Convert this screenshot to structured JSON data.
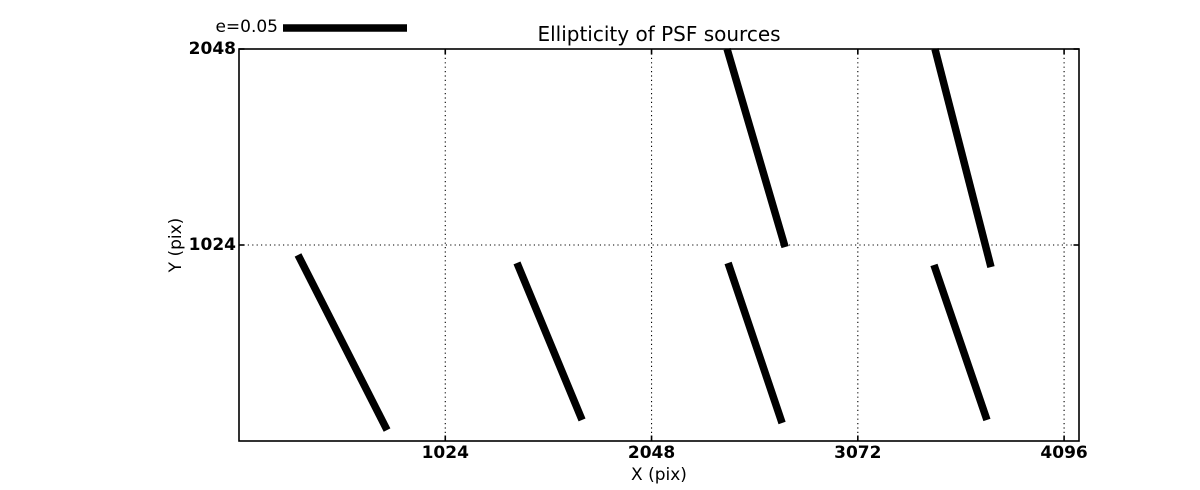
{
  "chart_data": {
    "type": "line",
    "subtype": "psf-ellipticity-whisker-plot",
    "title": "Ellipticity of PSF sources",
    "xlabel": "X (pix)",
    "ylabel": "Y (pix)",
    "xlim": [
      0,
      4170
    ],
    "ylim": [
      0,
      2048
    ],
    "xticks": [
      1024,
      2048,
      3072,
      4096
    ],
    "yticks": [
      1024,
      2048
    ],
    "grid": {
      "style": "dotted",
      "color": "#000000",
      "x_values": [
        1024,
        2048,
        3072,
        4096
      ],
      "y_values": [
        1024
      ]
    },
    "legend": {
      "label": "e=0.05",
      "position": "upper-left-outside-axes"
    },
    "series_color": "#000000",
    "background_color": "#ffffff",
    "segments": [
      {
        "x1": 293,
        "y1": 972,
        "x2": 735,
        "y2": 57
      },
      {
        "x1": 1380,
        "y1": 930,
        "x2": 1703,
        "y2": 110
      },
      {
        "x1": 2428,
        "y1": 930,
        "x2": 2696,
        "y2": 94
      },
      {
        "x1": 2423,
        "y1": 2048,
        "x2": 2711,
        "y2": 1013
      },
      {
        "x1": 3455,
        "y1": 2048,
        "x2": 3733,
        "y2": 909
      },
      {
        "x1": 3450,
        "y1": 920,
        "x2": 3713,
        "y2": 110
      }
    ]
  }
}
